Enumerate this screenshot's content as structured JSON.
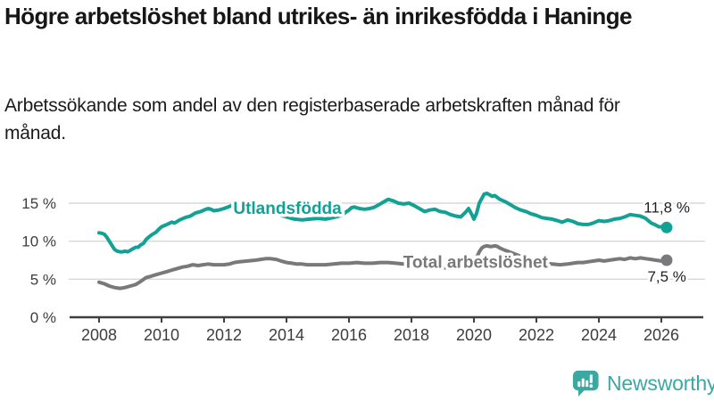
{
  "header": {
    "title": "Högre arbetslöshet bland utrikes- än inrikesfödda i Haninge",
    "subtitle": "Arbetssökande som andel av den registerbaserade arbetskraften månad för månad."
  },
  "footer": {
    "brand": "Newsworthy",
    "logo_icon": "bar-chart-speech-bubble-icon"
  },
  "colors": {
    "foreign_born_line": "#14a195",
    "total_line": "#79797b",
    "grid": "#d8d8d8",
    "axis": "#3f3f3f",
    "tick_text": "#3d3d3d",
    "brand_teal": "#3da7a1",
    "title_text": "#161616"
  },
  "chart_data": {
    "type": "line",
    "title": "Högre arbetslöshet bland utrikes- än inrikesfödda i Haninge",
    "xlabel": "",
    "ylabel": "",
    "x_ticks": [
      2008,
      2010,
      2012,
      2014,
      2016,
      2018,
      2020,
      2022,
      2024,
      2026
    ],
    "y_ticks": [
      {
        "value": 0,
        "label": "0 %"
      },
      {
        "value": 5,
        "label": "5 %"
      },
      {
        "value": 10,
        "label": "10 %"
      },
      {
        "value": 15,
        "label": "15 %"
      }
    ],
    "xlim": [
      2007.1,
      2027.3
    ],
    "ylim": [
      0,
      18.8
    ],
    "grid": "horizontal",
    "legend": "inline-labels",
    "series": [
      {
        "name": "Utlandsfödda",
        "color": "#14a195",
        "line_label": {
          "x": 2014.03,
          "y": 14.4
        },
        "end_label": "11,8 %",
        "end_label_side": "above",
        "points": [
          [
            2008,
            11.1
          ],
          [
            2008.08,
            11.05
          ],
          [
            2008.17,
            10.9
          ],
          [
            2008.25,
            10.5
          ],
          [
            2008.33,
            10
          ],
          [
            2008.42,
            9.4
          ],
          [
            2008.5,
            8.9
          ],
          [
            2008.58,
            8.7
          ],
          [
            2008.67,
            8.6
          ],
          [
            2008.75,
            8.6
          ],
          [
            2008.83,
            8.7
          ],
          [
            2008.92,
            8.6
          ],
          [
            2009,
            8.8
          ],
          [
            2009.08,
            9
          ],
          [
            2009.17,
            9.2
          ],
          [
            2009.25,
            9.2
          ],
          [
            2009.33,
            9.5
          ],
          [
            2009.42,
            9.7
          ],
          [
            2009.5,
            10.2
          ],
          [
            2009.58,
            10.5
          ],
          [
            2009.67,
            10.8
          ],
          [
            2009.75,
            11
          ],
          [
            2009.83,
            11.2
          ],
          [
            2009.92,
            11.6
          ],
          [
            2010,
            11.9
          ],
          [
            2010.17,
            12.2
          ],
          [
            2010.33,
            12.5
          ],
          [
            2010.42,
            12.4
          ],
          [
            2010.58,
            12.8
          ],
          [
            2010.75,
            13.1
          ],
          [
            2010.92,
            13.3
          ],
          [
            2011.08,
            13.7
          ],
          [
            2011.25,
            13.9
          ],
          [
            2011.42,
            14.2
          ],
          [
            2011.5,
            14.3
          ],
          [
            2011.58,
            14.2
          ],
          [
            2011.67,
            14
          ],
          [
            2011.83,
            14.1
          ],
          [
            2012,
            14.3
          ],
          [
            2012.25,
            14.7
          ],
          [
            2012.5,
            15
          ],
          [
            2012.75,
            14.9
          ],
          [
            2013,
            14.5
          ],
          [
            2013.25,
            14.1
          ],
          [
            2013.5,
            13.8
          ],
          [
            2013.75,
            13.5
          ],
          [
            2014,
            13.2
          ],
          [
            2014.25,
            12.9
          ],
          [
            2014.5,
            12.8
          ],
          [
            2014.75,
            12.9
          ],
          [
            2015,
            13
          ],
          [
            2015.25,
            12.9
          ],
          [
            2015.5,
            13.1
          ],
          [
            2015.75,
            13.4
          ],
          [
            2016,
            14.1
          ],
          [
            2016.08,
            14.4
          ],
          [
            2016.17,
            14.5
          ],
          [
            2016.33,
            14.3
          ],
          [
            2016.5,
            14.2
          ],
          [
            2016.67,
            14.3
          ],
          [
            2016.83,
            14.5
          ],
          [
            2017,
            14.9
          ],
          [
            2017.17,
            15.3
          ],
          [
            2017.25,
            15.5
          ],
          [
            2017.42,
            15.3
          ],
          [
            2017.58,
            15
          ],
          [
            2017.75,
            14.9
          ],
          [
            2017.92,
            15
          ],
          [
            2018.08,
            14.7
          ],
          [
            2018.25,
            14.3
          ],
          [
            2018.42,
            13.9
          ],
          [
            2018.58,
            14.1
          ],
          [
            2018.75,
            14.2
          ],
          [
            2018.92,
            13.9
          ],
          [
            2019.08,
            13.8
          ],
          [
            2019.25,
            13.5
          ],
          [
            2019.42,
            13.3
          ],
          [
            2019.58,
            13.2
          ],
          [
            2019.75,
            13.9
          ],
          [
            2019.83,
            14.3
          ],
          [
            2019.92,
            13.6
          ],
          [
            2020,
            12.9
          ],
          [
            2020.08,
            13.6
          ],
          [
            2020.17,
            15
          ],
          [
            2020.33,
            16.2
          ],
          [
            2020.42,
            16.3
          ],
          [
            2020.5,
            16.1
          ],
          [
            2020.58,
            15.9
          ],
          [
            2020.67,
            16
          ],
          [
            2020.83,
            15.5
          ],
          [
            2021,
            15.2
          ],
          [
            2021.17,
            14.8
          ],
          [
            2021.33,
            14.4
          ],
          [
            2021.5,
            14.1
          ],
          [
            2021.67,
            13.9
          ],
          [
            2021.83,
            13.6
          ],
          [
            2022,
            13.4
          ],
          [
            2022.17,
            13.1
          ],
          [
            2022.33,
            13
          ],
          [
            2022.5,
            12.9
          ],
          [
            2022.67,
            12.7
          ],
          [
            2022.83,
            12.5
          ],
          [
            2023,
            12.8
          ],
          [
            2023.17,
            12.6
          ],
          [
            2023.33,
            12.3
          ],
          [
            2023.5,
            12.2
          ],
          [
            2023.67,
            12.2
          ],
          [
            2023.83,
            12.4
          ],
          [
            2024,
            12.7
          ],
          [
            2024.17,
            12.6
          ],
          [
            2024.33,
            12.7
          ],
          [
            2024.5,
            12.9
          ],
          [
            2024.67,
            13
          ],
          [
            2024.83,
            13.2
          ],
          [
            2025,
            13.5
          ],
          [
            2025.17,
            13.4
          ],
          [
            2025.33,
            13.3
          ],
          [
            2025.5,
            13
          ],
          [
            2025.58,
            12.7
          ],
          [
            2025.67,
            12.4
          ],
          [
            2025.83,
            12.1
          ],
          [
            2025.92,
            11.9
          ],
          [
            2026,
            11.9
          ],
          [
            2026.17,
            11.8
          ]
        ]
      },
      {
        "name": "Total arbetslöshet",
        "color": "#79797b",
        "line_label": {
          "x": 2020.05,
          "y": 7.35
        },
        "end_label": "7,5 %",
        "end_label_side": "below",
        "points": [
          [
            2008,
            4.6
          ],
          [
            2008.17,
            4.4
          ],
          [
            2008.33,
            4.1
          ],
          [
            2008.5,
            3.9
          ],
          [
            2008.67,
            3.8
          ],
          [
            2008.83,
            3.9
          ],
          [
            2009,
            4.1
          ],
          [
            2009.17,
            4.3
          ],
          [
            2009.33,
            4.7
          ],
          [
            2009.5,
            5.2
          ],
          [
            2009.67,
            5.4
          ],
          [
            2009.83,
            5.6
          ],
          [
            2010,
            5.8
          ],
          [
            2010.17,
            6
          ],
          [
            2010.33,
            6.2
          ],
          [
            2010.5,
            6.4
          ],
          [
            2010.67,
            6.6
          ],
          [
            2010.83,
            6.7
          ],
          [
            2011,
            6.9
          ],
          [
            2011.17,
            6.8
          ],
          [
            2011.33,
            6.9
          ],
          [
            2011.5,
            7
          ],
          [
            2011.67,
            6.9
          ],
          [
            2011.83,
            6.9
          ],
          [
            2012,
            6.9
          ],
          [
            2012.17,
            7
          ],
          [
            2012.33,
            7.2
          ],
          [
            2012.5,
            7.3
          ],
          [
            2012.75,
            7.4
          ],
          [
            2013,
            7.5
          ],
          [
            2013.17,
            7.6
          ],
          [
            2013.33,
            7.7
          ],
          [
            2013.5,
            7.7
          ],
          [
            2013.67,
            7.6
          ],
          [
            2013.83,
            7.4
          ],
          [
            2014,
            7.2
          ],
          [
            2014.17,
            7.1
          ],
          [
            2014.33,
            7
          ],
          [
            2014.5,
            7
          ],
          [
            2014.67,
            6.9
          ],
          [
            2014.83,
            6.9
          ],
          [
            2015,
            6.9
          ],
          [
            2015.25,
            6.9
          ],
          [
            2015.5,
            7
          ],
          [
            2015.75,
            7.1
          ],
          [
            2016,
            7.1
          ],
          [
            2016.25,
            7.2
          ],
          [
            2016.5,
            7.1
          ],
          [
            2016.75,
            7.1
          ],
          [
            2017,
            7.2
          ],
          [
            2017.25,
            7.2
          ],
          [
            2017.5,
            7.1
          ],
          [
            2017.75,
            7
          ],
          [
            2018,
            6.8
          ],
          [
            2018.25,
            6.7
          ],
          [
            2018.5,
            6.6
          ],
          [
            2018.75,
            6.5
          ],
          [
            2019,
            6.5
          ],
          [
            2019.25,
            6.5
          ],
          [
            2019.5,
            6.6
          ],
          [
            2019.75,
            6.8
          ],
          [
            2020,
            7.3
          ],
          [
            2020.08,
            7.8
          ],
          [
            2020.17,
            8.6
          ],
          [
            2020.25,
            9.1
          ],
          [
            2020.33,
            9.3
          ],
          [
            2020.42,
            9.4
          ],
          [
            2020.5,
            9.3
          ],
          [
            2020.58,
            9.3
          ],
          [
            2020.67,
            9.4
          ],
          [
            2020.75,
            9.3
          ],
          [
            2020.83,
            9.1
          ],
          [
            2021,
            8.8
          ],
          [
            2021.25,
            8.4
          ],
          [
            2021.5,
            8
          ],
          [
            2021.75,
            7.7
          ],
          [
            2022,
            7.4
          ],
          [
            2022.25,
            7.1
          ],
          [
            2022.5,
            7
          ],
          [
            2022.75,
            6.9
          ],
          [
            2023,
            7
          ],
          [
            2023.17,
            7.1
          ],
          [
            2023.33,
            7.2
          ],
          [
            2023.5,
            7.2
          ],
          [
            2023.67,
            7.3
          ],
          [
            2023.83,
            7.4
          ],
          [
            2024,
            7.5
          ],
          [
            2024.17,
            7.4
          ],
          [
            2024.33,
            7.5
          ],
          [
            2024.5,
            7.6
          ],
          [
            2024.67,
            7.7
          ],
          [
            2024.83,
            7.6
          ],
          [
            2025,
            7.8
          ],
          [
            2025.17,
            7.7
          ],
          [
            2025.33,
            7.8
          ],
          [
            2025.5,
            7.7
          ],
          [
            2025.67,
            7.6
          ],
          [
            2025.83,
            7.5
          ],
          [
            2026,
            7.4
          ],
          [
            2026.17,
            7.5
          ]
        ]
      }
    ]
  }
}
